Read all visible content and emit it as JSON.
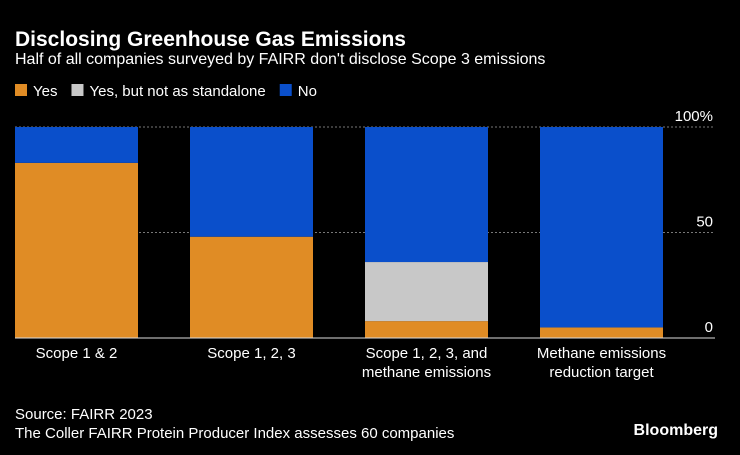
{
  "chart_data": {
    "type": "stacked_bar",
    "title": "Disclosing Greenhouse Gas Emissions",
    "subtitle": "Half of all companies surveyed by FAIRR don't disclose Scope 3 emissions",
    "categories": [
      [
        "Scope 1 & 2"
      ],
      [
        "Scope 1, 2, 3"
      ],
      [
        "Scope 1, 2, 3, and",
        "methane emissions"
      ],
      [
        "Methane emissions",
        "reduction target"
      ]
    ],
    "series": [
      {
        "name": "Yes",
        "color": "#e08c25",
        "values": [
          83,
          48,
          8,
          5
        ]
      },
      {
        "name": "Yes, but not as standalone",
        "color": "#c8c8c8",
        "values": [
          0,
          0,
          28,
          0
        ]
      },
      {
        "name": "No",
        "color": "#0a4fcb",
        "values": [
          17,
          52,
          64,
          95
        ]
      }
    ],
    "ylim": [
      0,
      100
    ],
    "yticks": [
      0,
      50,
      {
        "value": 100,
        "label": "100%"
      }
    ],
    "grid": true,
    "source": "Source: FAIRR 2023",
    "note": "The Coller FAIRR Protein Producer Index assesses 60 companies",
    "credit": "Bloomberg"
  }
}
